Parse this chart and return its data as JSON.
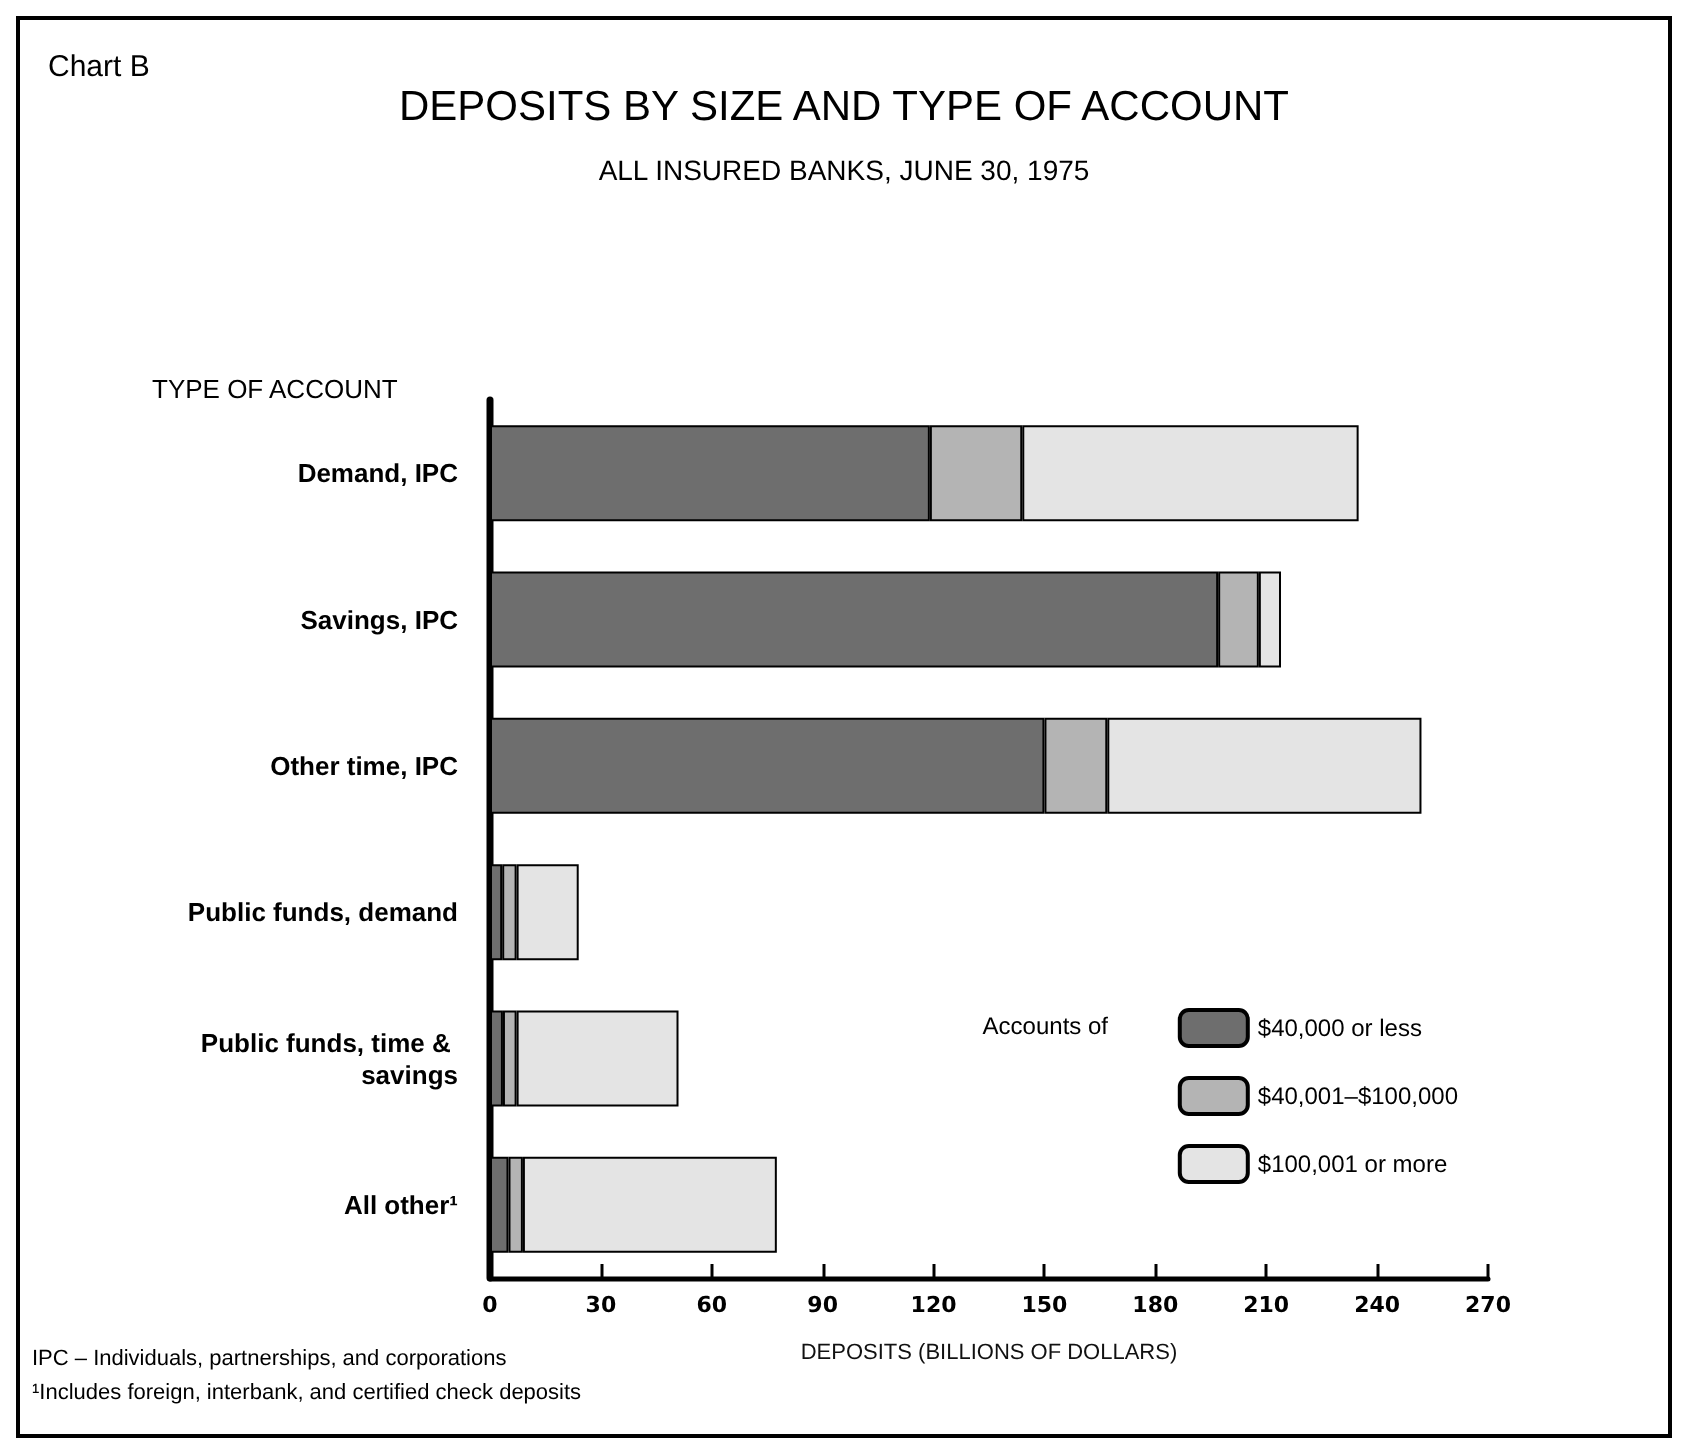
{
  "chart_data": {
    "type": "bar",
    "orientation": "horizontal",
    "stacked": true,
    "title": "DEPOSITS BY SIZE AND TYPE OF ACCOUNT",
    "subtitle": "ALL INSURED BANKS, JUNE 30, 1975",
    "xlabel": "DEPOSITS (BILLIONS OF DOLLARS)",
    "ylabel": "TYPE OF ACCOUNT",
    "legend_title": "Accounts of",
    "annotations": [
      "Chart B",
      "IPC – Individuals, partnerships, and corporations",
      "¹Includes foreign, interbank, and certified check deposits"
    ],
    "categories": [
      "Demand, IPC",
      "Savings, IPC",
      "Other time, IPC",
      "Public funds, demand",
      "Public funds, time & savings",
      "All other¹"
    ],
    "series": [
      {
        "name": "$40,000 or less",
        "color": "#6e6e6e",
        "values": [
          119,
          197,
          150,
          3.3,
          3.5,
          5
        ]
      },
      {
        "name": "$40,001–$100,000",
        "color": "#b4b4b4",
        "values": [
          25,
          11,
          17,
          3.9,
          3.7,
          3.9
        ]
      },
      {
        "name": "$100,001 or more",
        "color": "#e4e4e4",
        "values": [
          91,
          6,
          85,
          16.8,
          43.8,
          68.7
        ]
      }
    ],
    "xlim": [
      0,
      270
    ],
    "xticks": [
      0,
      30,
      60,
      90,
      120,
      150,
      180,
      210,
      240,
      270
    ],
    "legend": "bottom right"
  }
}
